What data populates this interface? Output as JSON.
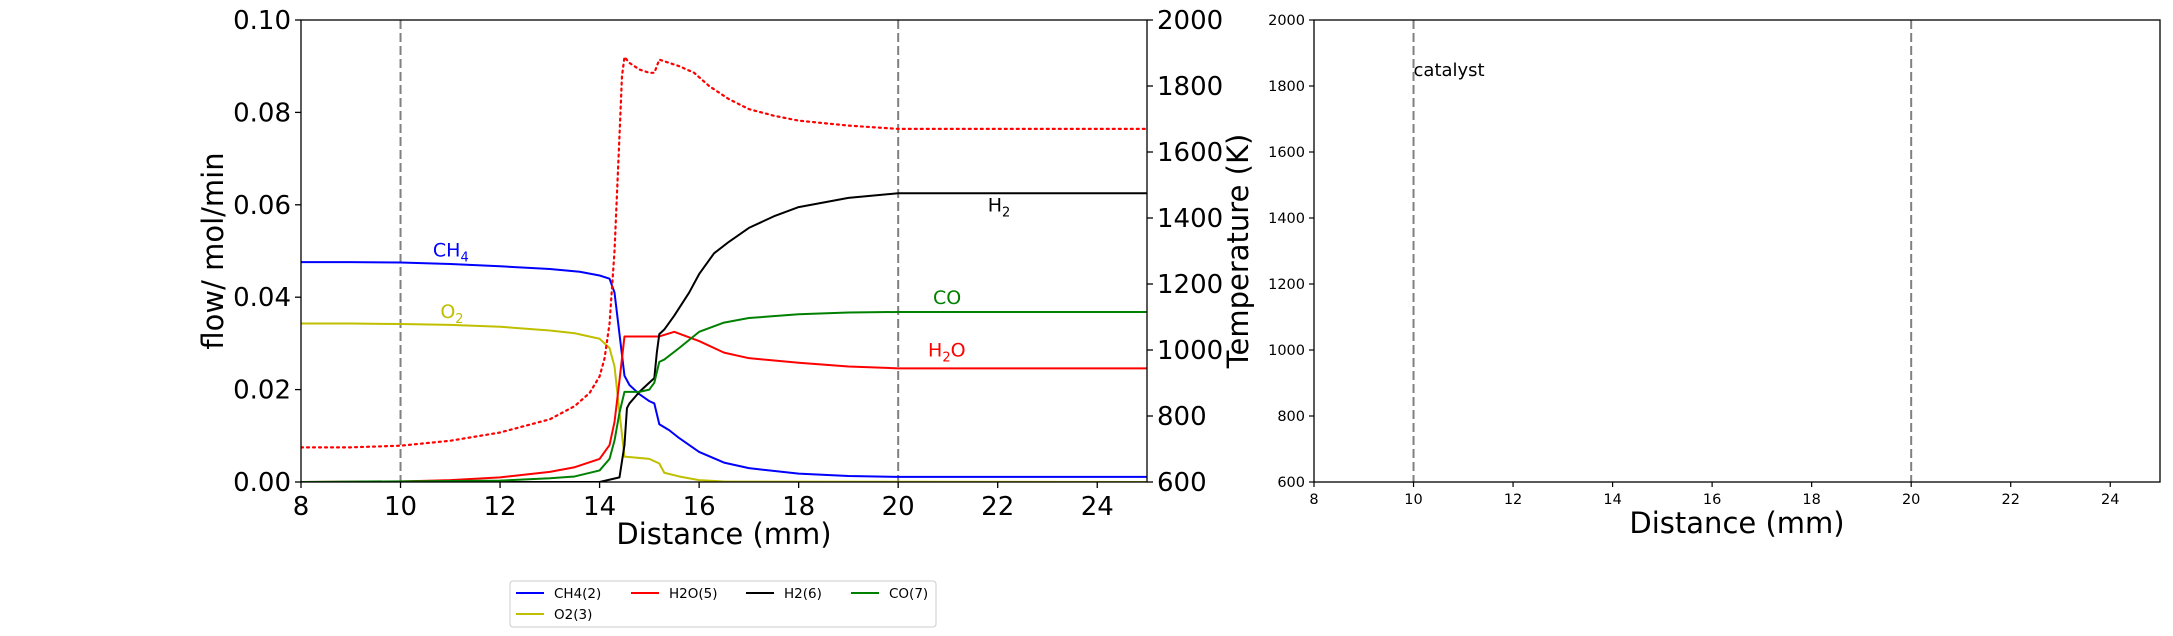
{
  "chart_data": [
    {
      "type": "line",
      "panel": "left",
      "xlabel": "Distance (mm)",
      "ylabel": "flow/ mol/min",
      "y2label": "Temperature (K)",
      "xlim": [
        8,
        25
      ],
      "ylim": [
        0,
        0.1
      ],
      "y2lim": [
        600,
        2000
      ],
      "xticks": [
        "8",
        "10",
        "12",
        "14",
        "16",
        "18",
        "20",
        "22",
        "24"
      ],
      "yticks": [
        "0.00",
        "0.02",
        "0.04",
        "0.06",
        "0.08",
        "0.10"
      ],
      "y2ticks": [
        "600",
        "800",
        "1000",
        "1200",
        "1400",
        "1600",
        "1800",
        "2000"
      ],
      "vlines": [
        10,
        20
      ],
      "series": [
        {
          "name": "CH4(2)",
          "color": "#0000ff",
          "x": [
            8,
            9,
            10,
            11,
            12,
            13,
            13.6,
            14,
            14.2,
            14.3,
            14.4,
            14.5,
            14.6,
            14.8,
            15,
            15.1,
            15.2,
            15.4,
            15.6,
            16,
            16.5,
            17,
            18,
            19,
            20,
            22,
            25
          ],
          "y": [
            0.0476,
            0.0476,
            0.0475,
            0.0472,
            0.0467,
            0.0461,
            0.0455,
            0.0447,
            0.044,
            0.041,
            0.032,
            0.023,
            0.021,
            0.019,
            0.0175,
            0.017,
            0.0125,
            0.0112,
            0.0095,
            0.0065,
            0.0042,
            0.003,
            0.0018,
            0.0013,
            0.0011,
            0.0011,
            0.0011
          ]
        },
        {
          "name": "O2(3)",
          "color": "#bfbf00",
          "x": [
            8,
            9,
            10,
            11,
            12,
            13,
            13.5,
            14,
            14.2,
            14.3,
            14.4,
            14.5,
            14.7,
            15,
            15.2,
            15.3,
            15.6,
            16,
            16.5,
            25
          ],
          "y": [
            0.0343,
            0.0343,
            0.0342,
            0.034,
            0.0336,
            0.0328,
            0.0322,
            0.031,
            0.029,
            0.025,
            0.015,
            0.0055,
            0.0053,
            0.005,
            0.004,
            0.002,
            0.0012,
            0.0004,
            0.0001,
            0.0
          ]
        },
        {
          "name": "H2O(5)",
          "color": "#ff0000",
          "x": [
            8,
            10,
            11,
            12,
            13,
            13.5,
            14,
            14.2,
            14.3,
            14.4,
            14.5,
            15,
            15.2,
            15.5,
            16,
            16.5,
            17,
            18,
            19,
            20,
            22,
            25
          ],
          "y": [
            0.0,
            0.0001,
            0.0004,
            0.001,
            0.0022,
            0.0032,
            0.005,
            0.008,
            0.013,
            0.022,
            0.0315,
            0.0315,
            0.0315,
            0.0325,
            0.0305,
            0.028,
            0.0268,
            0.0258,
            0.025,
            0.0246,
            0.0246,
            0.0246
          ]
        },
        {
          "name": "H2(6)",
          "color": "#000000",
          "x": [
            8,
            14,
            14.4,
            14.5,
            14.55,
            14.6,
            14.8,
            15,
            15.1,
            15.15,
            15.2,
            15.3,
            15.5,
            15.8,
            16,
            16.3,
            16.6,
            17,
            17.5,
            18,
            19,
            20,
            22,
            25
          ],
          "y": [
            0.0,
            0.0,
            0.001,
            0.008,
            0.016,
            0.017,
            0.0195,
            0.0215,
            0.0225,
            0.028,
            0.032,
            0.033,
            0.036,
            0.041,
            0.045,
            0.0495,
            0.052,
            0.055,
            0.0575,
            0.0595,
            0.0615,
            0.0625,
            0.0625,
            0.0625
          ]
        },
        {
          "name": "CO(7)",
          "color": "#008000",
          "x": [
            8,
            12,
            13,
            13.5,
            14,
            14.2,
            14.3,
            14.4,
            14.5,
            14.8,
            15,
            15.1,
            15.2,
            15.3,
            15.6,
            16,
            16.5,
            17,
            18,
            19,
            20,
            22,
            25
          ],
          "y": [
            0.0,
            0.0003,
            0.0008,
            0.0012,
            0.0025,
            0.005,
            0.009,
            0.015,
            0.0195,
            0.0195,
            0.02,
            0.0215,
            0.026,
            0.0265,
            0.029,
            0.0325,
            0.0345,
            0.0355,
            0.0363,
            0.0367,
            0.0368,
            0.0368,
            0.0368
          ]
        },
        {
          "name": "Temperature",
          "color": "#ff0000",
          "axis": "right",
          "style": "dotted",
          "x": [
            8,
            9,
            10,
            11,
            12,
            13,
            13.5,
            13.8,
            14,
            14.1,
            14.2,
            14.3,
            14.4,
            14.45,
            14.5,
            14.6,
            14.8,
            15,
            15.1,
            15.2,
            15.3,
            15.6,
            15.9,
            16.2,
            16.6,
            17,
            17.5,
            18,
            19,
            20,
            22,
            25
          ],
          "y": [
            705,
            705,
            710,
            725,
            750,
            790,
            830,
            870,
            920,
            975,
            1080,
            1300,
            1650,
            1830,
            1888,
            1870,
            1850,
            1840,
            1840,
            1880,
            1875,
            1860,
            1840,
            1800,
            1760,
            1730,
            1710,
            1695,
            1680,
            1670,
            1670,
            1670
          ]
        }
      ],
      "annotations": [
        {
          "base": "CH",
          "sub": "4",
          "x": 10.65,
          "y": 0.0488,
          "color": "#0000ff",
          "axis": "left"
        },
        {
          "base": "O",
          "sub": "2",
          "x": 10.8,
          "y": 0.0355,
          "color": "#bfbf00",
          "axis": "left"
        },
        {
          "base": "H",
          "sub": "2",
          "x": 21.8,
          "y": 0.0585,
          "color": "#000000",
          "axis": "left"
        },
        {
          "base": "CO",
          "sub": "",
          "x": 20.7,
          "y": 0.0385,
          "color": "#008000",
          "axis": "left"
        },
        {
          "base": "H",
          "sub": "2",
          "tail": "O",
          "x": 20.6,
          "y": 0.0272,
          "color": "#ff0000",
          "axis": "left"
        }
      ],
      "legend": {
        "placement": "bottom",
        "entries": [
          {
            "label": "CH4(2)",
            "color": "#0000ff"
          },
          {
            "label": "H2O(5)",
            "color": "#ff0000"
          },
          {
            "label": "H2(6)",
            "color": "#000000"
          },
          {
            "label": "CO(7)",
            "color": "#008000"
          },
          {
            "label": "O2(3)",
            "color": "#bfbf00"
          }
        ]
      }
    },
    {
      "type": "line",
      "panel": "right",
      "xlabel": "Distance (mm)",
      "xlim": [
        8,
        25
      ],
      "ylim": [
        600,
        2000
      ],
      "xticks": [
        "8",
        "10",
        "12",
        "14",
        "16",
        "18",
        "20",
        "22",
        "24"
      ],
      "yticks": [
        "600",
        "800",
        "1000",
        "1200",
        "1400",
        "1600",
        "1800",
        "2000"
      ],
      "vlines": [
        10,
        20
      ],
      "series": [],
      "annotations": [
        {
          "text": "catalyst",
          "x": 10,
          "y": 1830,
          "color": "#000000"
        }
      ]
    }
  ]
}
